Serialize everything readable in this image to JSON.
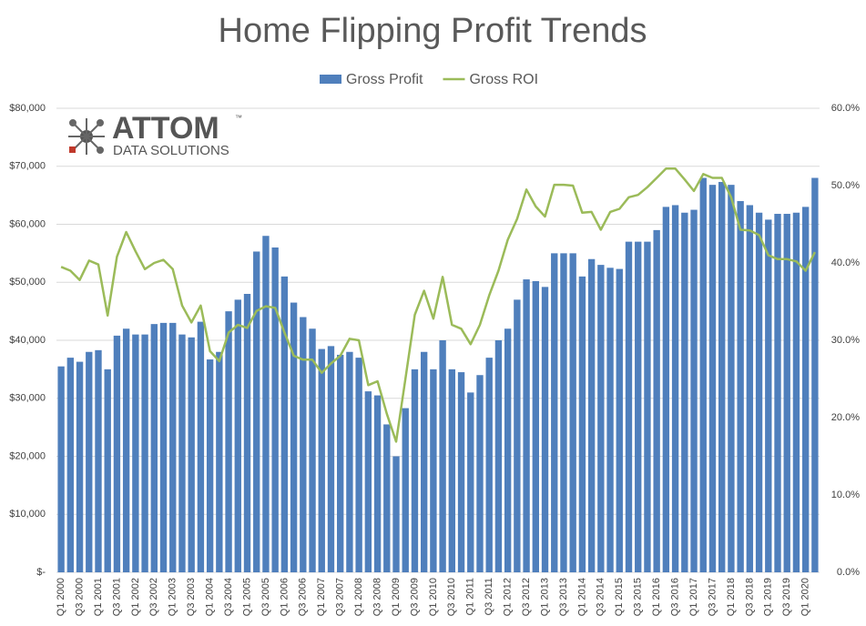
{
  "chart_data": {
    "type": "bar-line",
    "title": "Home Flipping  Profit Trends",
    "logo": {
      "name": "ATTOM",
      "mark": "™",
      "tagline": "DATA SOLUTIONS"
    },
    "legend": "top",
    "grid": true,
    "categories": [
      "Q1 2000",
      null,
      "Q3 2000",
      null,
      "Q1 2001",
      null,
      "Q3 2001",
      null,
      "Q1 2002",
      null,
      "Q3 2002",
      null,
      "Q1 2003",
      null,
      "Q3 2003",
      null,
      "Q1 2004",
      null,
      "Q3 2004",
      null,
      "Q1 2005",
      null,
      "Q3 2005",
      null,
      "Q1 2006",
      null,
      "Q3 2006",
      null,
      "Q1 2007",
      null,
      "Q3 2007",
      null,
      "Q1 2008",
      null,
      "Q3 2008",
      null,
      "Q1 2009",
      null,
      "Q3 2009",
      null,
      "Q1 2010",
      null,
      "Q3 2010",
      null,
      "Q1 2011",
      null,
      "Q3 2011",
      null,
      "Q1 2012",
      null,
      "Q3 2012",
      null,
      "Q1 2013",
      null,
      "Q3 2013",
      null,
      "Q1 2014",
      null,
      "Q3 2014",
      null,
      "Q1 2015",
      null,
      "Q3 2015",
      null,
      "Q1 2016",
      null,
      "Q3 2016",
      null,
      "Q1 2017",
      null,
      "Q3 2017",
      null,
      "Q1 2018",
      null,
      "Q3 2018",
      null,
      "Q1 2019",
      null,
      "Q3 2019",
      null,
      "Q1 2020",
      null
    ],
    "series": [
      {
        "name": "Gross Profit",
        "type": "bar",
        "color": "#4f7fbc",
        "values": [
          35500,
          37000,
          36300,
          38000,
          38300,
          35000,
          40800,
          42000,
          41000,
          41000,
          42800,
          43000,
          43000,
          41000,
          40500,
          43200,
          36700,
          38000,
          45000,
          47000,
          48000,
          55300,
          58000,
          56000,
          51000,
          46500,
          44000,
          42000,
          38500,
          39000,
          37500,
          38000,
          37000,
          31200,
          30500,
          25500,
          20000,
          28300,
          35000,
          38000,
          35000,
          40000,
          35000,
          34500,
          31000,
          34000,
          37000,
          40000,
          42000,
          47000,
          50500,
          50200,
          49200,
          55000,
          55000,
          55000,
          51000,
          54000,
          53000,
          52500,
          52300,
          57000,
          57000,
          57000,
          59000,
          63000,
          63300,
          62000,
          62500,
          68000,
          66800,
          67300,
          66800,
          64000,
          63300,
          62000,
          60800,
          61800,
          61800,
          62000,
          63000,
          68000
        ]
      },
      {
        "name": "Gross ROI",
        "type": "line",
        "axis": "y2",
        "color": "#9bbb59",
        "values": [
          39.5,
          39,
          37.8,
          40.3,
          39.8,
          33.2,
          40.8,
          44,
          41.5,
          39.2,
          40,
          40.4,
          39.2,
          34.5,
          32.3,
          34.5,
          28.6,
          27.3,
          31,
          32,
          31.6,
          33.8,
          34.4,
          34.2,
          31,
          28,
          27.5,
          27.5,
          25.8,
          27,
          28,
          30.2,
          30,
          24.2,
          24.7,
          20.5,
          16.9,
          25,
          33.3,
          36.4,
          32.8,
          38.2,
          32,
          31.5,
          29.5,
          32,
          35.8,
          39,
          43,
          45.7,
          49.5,
          47.3,
          46,
          50.1,
          50.1,
          50,
          46.5,
          46.6,
          44.3,
          46.6,
          47,
          48.5,
          48.8,
          49.8,
          51,
          52.2,
          52.2,
          50.8,
          49.3,
          51.5,
          51,
          51,
          48.5,
          44.3,
          44.2,
          43.6,
          41,
          40.5,
          40.5,
          40.2,
          39,
          41.4
        ]
      }
    ],
    "ylim": [
      0,
      80000
    ],
    "yticks": [
      {
        "value": 0,
        "label": "$-"
      },
      {
        "value": 10000,
        "label": "$10,000"
      },
      {
        "value": 20000,
        "label": "$20,000"
      },
      {
        "value": 30000,
        "label": "$30,000"
      },
      {
        "value": 40000,
        "label": "$40,000"
      },
      {
        "value": 50000,
        "label": "$50,000"
      },
      {
        "value": 60000,
        "label": "$60,000"
      },
      {
        "value": 70000,
        "label": "$70,000"
      },
      {
        "value": 80000,
        "label": "$80,000"
      }
    ],
    "y2lim": [
      0,
      60
    ],
    "y2ticks": [
      {
        "value": 0,
        "label": "0.0%"
      },
      {
        "value": 10,
        "label": "10.0%"
      },
      {
        "value": 20,
        "label": "20.0%"
      },
      {
        "value": 30,
        "label": "30.0%"
      },
      {
        "value": 40,
        "label": "40.0%"
      },
      {
        "value": 50,
        "label": "50.0%"
      },
      {
        "value": 60,
        "label": "60.0%"
      }
    ]
  }
}
